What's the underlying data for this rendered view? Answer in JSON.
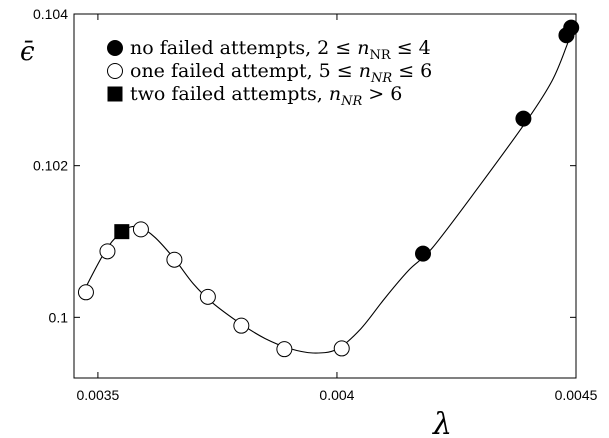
{
  "chart_data": {
    "type": "scatter",
    "xlabel": "λ",
    "ylabel": "ϵ̄",
    "xlim": [
      0.00345,
      0.0045
    ],
    "ylim": [
      0.0992,
      0.104
    ],
    "x_ticks": [
      0.0035,
      0.004,
      0.0045
    ],
    "x_tick_labels": [
      "0.0035",
      "0.004",
      "0.0045"
    ],
    "y_ticks": [
      0.1,
      0.102,
      0.104
    ],
    "y_tick_labels": [
      "0.1",
      "0.102",
      "0.104"
    ],
    "grid": false,
    "legend_position": "top-left",
    "curve": {
      "x": [
        0.00347,
        0.00352,
        0.00356,
        0.00359,
        0.00362,
        0.00366,
        0.0037,
        0.00374,
        0.0038,
        0.00385,
        0.0039,
        0.00395,
        0.004,
        0.00405,
        0.0041,
        0.00415,
        0.0042,
        0.0043,
        0.0044,
        0.00445,
        0.00448,
        0.00449
      ],
      "y": [
        0.10034,
        0.10092,
        0.10117,
        0.10118,
        0.10105,
        0.10077,
        0.10044,
        0.10019,
        0.09991,
        0.09972,
        0.09959,
        0.09953,
        0.09958,
        0.09985,
        0.10025,
        0.10062,
        0.10092,
        0.10175,
        0.10262,
        0.10312,
        0.10357,
        0.10375
      ]
    },
    "series": [
      {
        "name": "no failed attempts, 2 ≤ n_NR ≤ 4",
        "legend_text": "no failed attempts, 2 ≤ ",
        "legend_math": "n",
        "legend_sub": "NR",
        "legend_tail": " ≤ 4",
        "marker": "filled-circle",
        "x": [
          0.00418,
          0.00439,
          0.00448,
          0.00449
        ],
        "y": [
          0.10084,
          0.10262,
          0.10372,
          0.10382
        ]
      },
      {
        "name": "one failed attempt, 5 ≤ n_NR ≤ 6",
        "legend_text": "one failed attempt, 5 ≤ ",
        "legend_math": "n",
        "legend_sub": "NR",
        "legend_tail": " ≤ 6",
        "marker": "open-circle",
        "x": [
          0.003475,
          0.00352,
          0.00359,
          0.00366,
          0.00373,
          0.0038,
          0.00389,
          0.00401
        ],
        "y": [
          0.10033,
          0.10087,
          0.10116,
          0.10076,
          0.10027,
          0.09989,
          0.09958,
          0.09959
        ]
      },
      {
        "name": "two failed attempts, n_NR > 6",
        "legend_text": "two failed attempts, ",
        "legend_math": "n",
        "legend_sub": "NR",
        "legend_tail": " > 6",
        "marker": "filled-square",
        "x": [
          0.00355
        ],
        "y": [
          0.10113
        ]
      }
    ]
  }
}
